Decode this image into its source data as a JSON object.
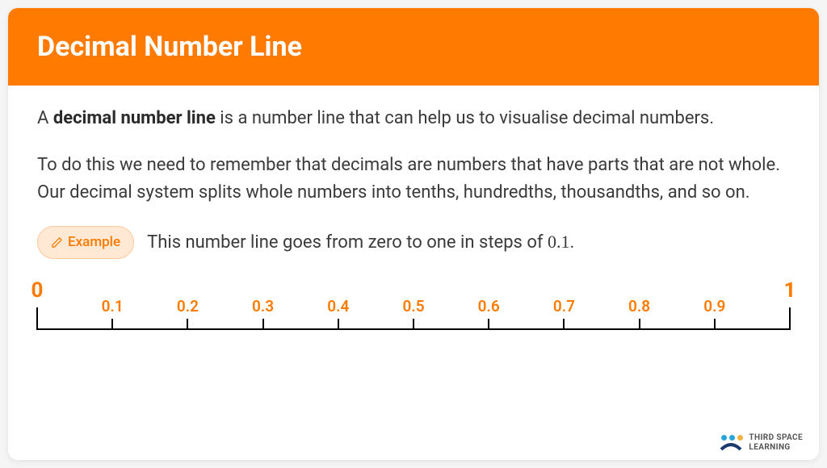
{
  "header": {
    "title": "Decimal Number Line",
    "bg_color": "#ff7a00",
    "text_color": "#ffffff"
  },
  "body": {
    "p1_lead_bold": "decimal number line",
    "p1_rest": " is a number line that can help us to visualise decimal numbers.",
    "p2": "To do this we need to remember that decimals are numbers that have parts that are not whole. Our decimal system splits whole numbers into tenths, hundredths, thousandths, and so on."
  },
  "example": {
    "badge_label": "Example",
    "badge_bg": "#ffe8d4",
    "badge_border": "#ffc89a",
    "badge_text_color": "#ff7a00",
    "text_before": "This number line goes from zero to one in steps of ",
    "math_value": "0.1",
    "text_after": "."
  },
  "numberline": {
    "line_color": "#000000",
    "label_color": "#ff7a00",
    "start": 0,
    "end": 1,
    "step": 0.1,
    "major_ticks": [
      {
        "pos_pct": 0,
        "label": "0"
      },
      {
        "pos_pct": 100,
        "label": "1"
      }
    ],
    "minor_ticks": [
      {
        "pos_pct": 10,
        "label": "0.1"
      },
      {
        "pos_pct": 20,
        "label": "0.2"
      },
      {
        "pos_pct": 30,
        "label": "0.3"
      },
      {
        "pos_pct": 40,
        "label": "0.4"
      },
      {
        "pos_pct": 50,
        "label": "0.5"
      },
      {
        "pos_pct": 60,
        "label": "0.6"
      },
      {
        "pos_pct": 70,
        "label": "0.7"
      },
      {
        "pos_pct": 80,
        "label": "0.8"
      },
      {
        "pos_pct": 90,
        "label": "0.9"
      }
    ]
  },
  "brand": {
    "line1": "THIRD SPACE",
    "line2": "LEARNING",
    "dot_colors": [
      "#2aa5d9",
      "#2aa5d9",
      "#f5b342"
    ],
    "arc_color": "#1a3a6e"
  }
}
